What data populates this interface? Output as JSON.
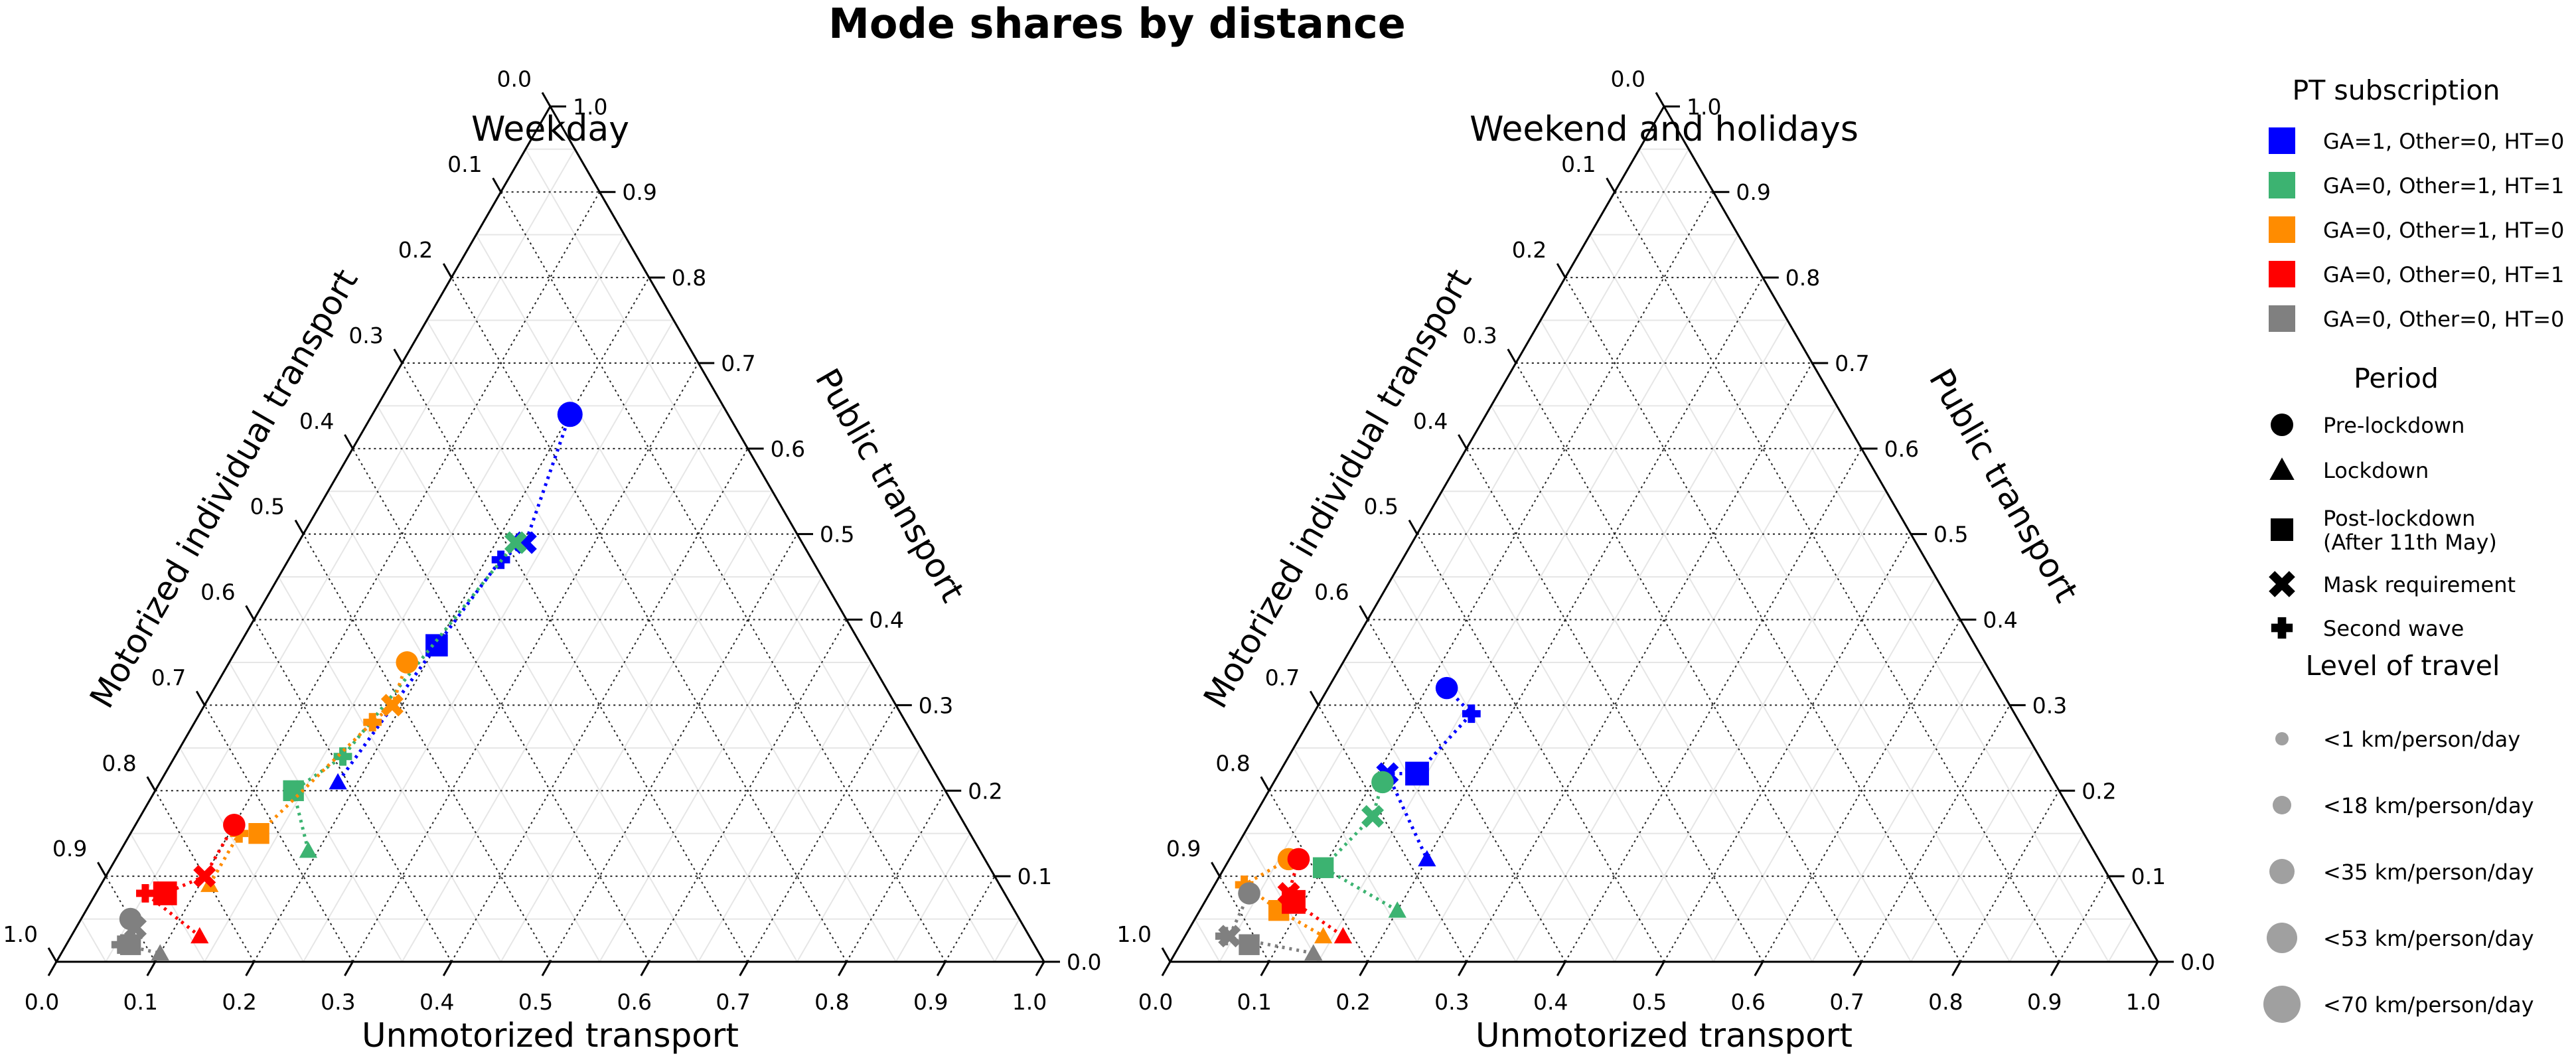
{
  "chart_data": {
    "type": "scatter",
    "subtype": "ternary",
    "title": "Mode shares by distance",
    "axes": {
      "bottom": "Unmotorized transport",
      "left": "Motorized individual transport",
      "right": "Public transport"
    },
    "tick_labels": [
      "0.0",
      "0.1",
      "0.2",
      "0.3",
      "0.4",
      "0.5",
      "0.6",
      "0.7",
      "0.8",
      "0.9",
      "1.0"
    ],
    "grid": true,
    "legend_placement": "right",
    "legend": {
      "subscription_title": "PT subscription",
      "subscriptions": [
        {
          "key": "ga",
          "label": "GA=1, Other=0, HT=0",
          "color": "#0000ff"
        },
        {
          "key": "oht",
          "label": "GA=0, Other=1, HT=1",
          "color": "#3cb371"
        },
        {
          "key": "o",
          "label": "GA=0, Other=1, HT=0",
          "color": "#ff8c00"
        },
        {
          "key": "ht",
          "label": "GA=0, Other=0, HT=1",
          "color": "#ff0000"
        },
        {
          "key": "none",
          "label": "GA=0, Other=0, HT=0",
          "color": "#808080"
        }
      ],
      "period_title": "Period",
      "periods": [
        {
          "key": "pre",
          "label": "Pre-lockdown",
          "marker": "circle"
        },
        {
          "key": "lock",
          "label": "Lockdown",
          "marker": "triangle"
        },
        {
          "key": "post",
          "label": "Post-lockdown\n(After 11th May)",
          "marker": "square"
        },
        {
          "key": "mask",
          "label": "Mask requirement",
          "marker": "x"
        },
        {
          "key": "second",
          "label": "Second wave",
          "marker": "plus"
        }
      ],
      "size_title": "Level of travel",
      "sizes": [
        {
          "label": "<1 km/person/day",
          "km": 1
        },
        {
          "label": "<18 km/person/day",
          "km": 18
        },
        {
          "label": "<35 km/person/day",
          "km": 35
        },
        {
          "label": "<53 km/person/day",
          "km": 53
        },
        {
          "label": "<70 km/person/day",
          "km": 70
        }
      ]
    },
    "panels": [
      {
        "subtitle": "Weekday",
        "series": [
          {
            "group": "ga",
            "points": [
              {
                "period": "pre",
                "u": 0.2,
                "pt": 0.64,
                "km": 50
              },
              {
                "period": "mask",
                "u": 0.23,
                "pt": 0.49,
                "km": 30
              },
              {
                "period": "second",
                "u": 0.215,
                "pt": 0.47,
                "km": 30
              },
              {
                "period": "post",
                "u": 0.2,
                "pt": 0.37,
                "km": 40
              },
              {
                "period": "lock",
                "u": 0.18,
                "pt": 0.21,
                "km": 20
              }
            ]
          },
          {
            "group": "oht",
            "points": [
              {
                "period": "mask",
                "u": 0.22,
                "pt": 0.49,
                "km": 30
              },
              {
                "period": "second",
                "u": 0.17,
                "pt": 0.24,
                "km": 30
              },
              {
                "period": "post",
                "u": 0.14,
                "pt": 0.2,
                "km": 35
              },
              {
                "period": "lock",
                "u": 0.19,
                "pt": 0.13,
                "km": 20
              }
            ]
          },
          {
            "group": "o",
            "points": [
              {
                "period": "pre",
                "u": 0.18,
                "pt": 0.35,
                "km": 40
              },
              {
                "period": "mask",
                "u": 0.19,
                "pt": 0.3,
                "km": 30
              },
              {
                "period": "second",
                "u": 0.18,
                "pt": 0.28,
                "km": 30
              },
              {
                "period": "post",
                "u": 0.13,
                "pt": 0.15,
                "km": 35
              },
              {
                "period": "second",
                "u": 0.11,
                "pt": 0.15,
                "km": 30
              },
              {
                "period": "lock",
                "u": 0.11,
                "pt": 0.09,
                "km": 20
              }
            ]
          },
          {
            "group": "ht",
            "points": [
              {
                "period": "pre",
                "u": 0.1,
                "pt": 0.16,
                "km": 40
              },
              {
                "period": "mask",
                "u": 0.1,
                "pt": 0.1,
                "km": 30
              },
              {
                "period": "post",
                "u": 0.07,
                "pt": 0.08,
                "km": 45
              },
              {
                "period": "second",
                "u": 0.05,
                "pt": 0.08,
                "km": 30
              },
              {
                "period": "lock",
                "u": 0.13,
                "pt": 0.03,
                "km": 20
              }
            ]
          },
          {
            "group": "none",
            "points": [
              {
                "period": "pre",
                "u": 0.05,
                "pt": 0.05,
                "km": 40
              },
              {
                "period": "mask",
                "u": 0.06,
                "pt": 0.04,
                "km": 30
              },
              {
                "period": "post",
                "u": 0.065,
                "pt": 0.02,
                "km": 35
              },
              {
                "period": "second",
                "u": 0.055,
                "pt": 0.02,
                "km": 30
              },
              {
                "period": "lock",
                "u": 0.1,
                "pt": 0.01,
                "km": 20
              }
            ]
          }
        ]
      },
      {
        "subtitle": "Weekend and holidays",
        "series": [
          {
            "group": "ga",
            "points": [
              {
                "period": "pre",
                "u": 0.12,
                "pt": 0.32,
                "km": 40
              },
              {
                "period": "second",
                "u": 0.16,
                "pt": 0.29,
                "km": 30
              },
              {
                "period": "post",
                "u": 0.14,
                "pt": 0.22,
                "km": 45
              },
              {
                "period": "mask",
                "u": 0.11,
                "pt": 0.22,
                "km": 30
              },
              {
                "period": "lock",
                "u": 0.2,
                "pt": 0.12,
                "km": 20
              }
            ]
          },
          {
            "group": "oht",
            "points": [
              {
                "period": "pre",
                "u": 0.11,
                "pt": 0.21,
                "km": 40
              },
              {
                "period": "mask",
                "u": 0.12,
                "pt": 0.17,
                "km": 30
              },
              {
                "period": "post",
                "u": 0.1,
                "pt": 0.11,
                "km": 35
              },
              {
                "period": "lock",
                "u": 0.2,
                "pt": 0.06,
                "km": 20
              }
            ]
          },
          {
            "group": "o",
            "points": [
              {
                "period": "pre",
                "u": 0.06,
                "pt": 0.12,
                "km": 40
              },
              {
                "period": "second",
                "u": 0.03,
                "pt": 0.09,
                "km": 30
              },
              {
                "period": "post",
                "u": 0.08,
                "pt": 0.06,
                "km": 35
              },
              {
                "period": "lock",
                "u": 0.14,
                "pt": 0.03,
                "km": 20
              }
            ]
          },
          {
            "group": "ht",
            "points": [
              {
                "period": "pre",
                "u": 0.07,
                "pt": 0.12,
                "km": 40
              },
              {
                "period": "mask",
                "u": 0.08,
                "pt": 0.08,
                "km": 30
              },
              {
                "period": "post",
                "u": 0.09,
                "pt": 0.07,
                "km": 45
              },
              {
                "period": "lock",
                "u": 0.16,
                "pt": 0.03,
                "km": 20
              }
            ]
          },
          {
            "group": "none",
            "points": [
              {
                "period": "pre",
                "u": 0.04,
                "pt": 0.08,
                "km": 40
              },
              {
                "period": "mask",
                "u": 0.045,
                "pt": 0.03,
                "km": 30
              },
              {
                "period": "post",
                "u": 0.07,
                "pt": 0.02,
                "km": 35
              },
              {
                "period": "second",
                "u": 0.04,
                "pt": 0.03,
                "km": 30
              },
              {
                "period": "lock",
                "u": 0.14,
                "pt": 0.01,
                "km": 20
              }
            ]
          }
        ]
      }
    ]
  }
}
